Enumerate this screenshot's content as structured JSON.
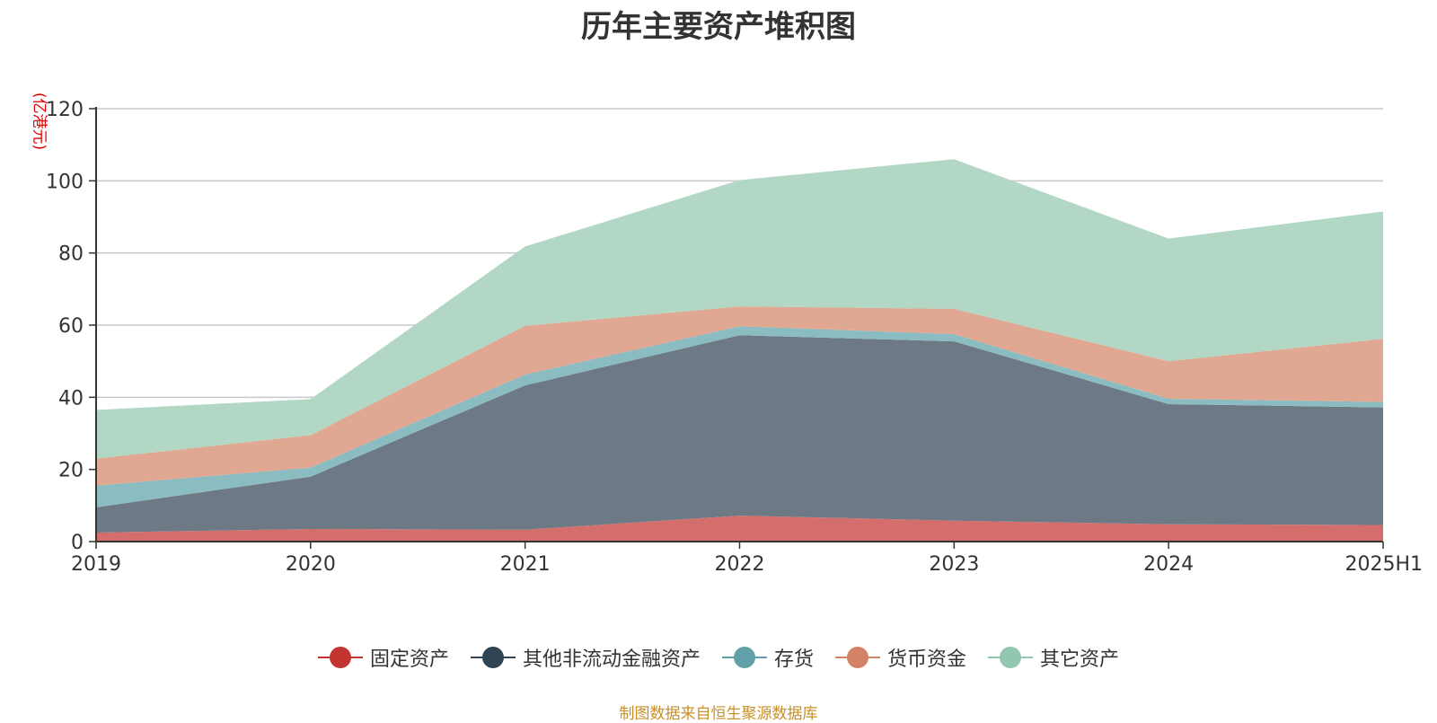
{
  "chart_data": {
    "type": "area",
    "stacked": true,
    "title": "历年主要资产堆积图",
    "ylabel": "(亿港元)",
    "xlabel": "",
    "categories": [
      "2019",
      "2020",
      "2021",
      "2022",
      "2023",
      "2024",
      "2025H1"
    ],
    "ylim": [
      0,
      120
    ],
    "yticks": [
      0,
      20,
      40,
      60,
      80,
      100,
      120
    ],
    "grid": true,
    "legend_position": "bottom",
    "series": [
      {
        "name": "固定资产",
        "color": "#c23531",
        "fill": "#d46e6c",
        "values": [
          2.5,
          3.5,
          3.3,
          7.2,
          5.8,
          4.8,
          4.6
        ]
      },
      {
        "name": "其他非流动金融资产",
        "color": "#2f4554",
        "fill": "#6d7a85",
        "values": [
          7.0,
          14.5,
          40.0,
          50.0,
          49.7,
          33.3,
          32.6
        ]
      },
      {
        "name": "存货",
        "color": "#61a0a8",
        "fill": "#8bbcc2",
        "values": [
          6.0,
          2.5,
          3.0,
          2.5,
          2.0,
          1.5,
          1.5
        ]
      },
      {
        "name": "货币资金",
        "color": "#d48265",
        "fill": "#e0a792",
        "values": [
          7.5,
          9.0,
          13.5,
          5.5,
          7.0,
          10.4,
          17.5
        ]
      },
      {
        "name": "其它资产",
        "color": "#91c7ae",
        "fill": "#b2d8c5",
        "values": [
          13.5,
          10.0,
          22.0,
          35.0,
          41.5,
          34.0,
          35.3
        ]
      }
    ]
  },
  "footer": {
    "source": "制图数据来自恒生聚源数据库"
  }
}
